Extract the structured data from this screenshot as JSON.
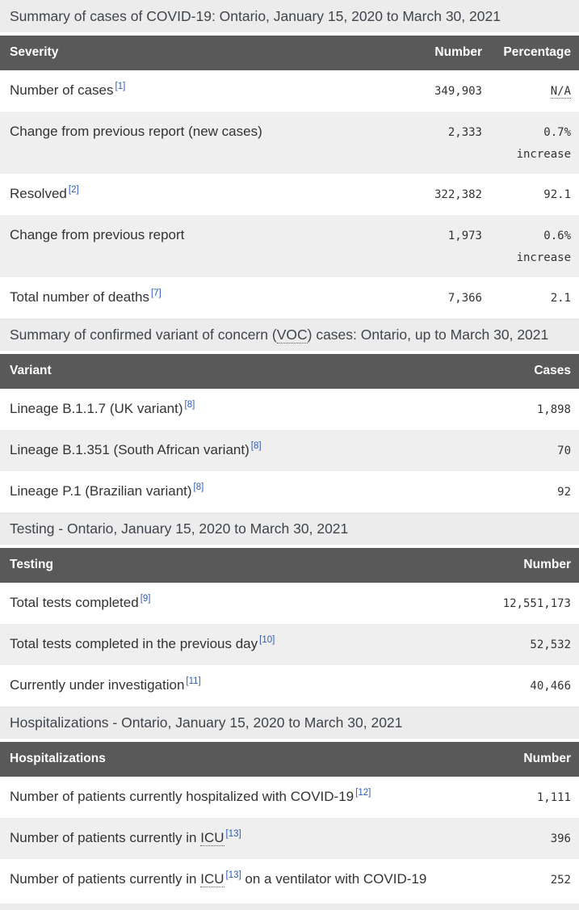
{
  "colors": {
    "header_bar_bg": "#595959",
    "header_bar_text": "#ffffff",
    "caption_bg": "#ececec",
    "row_alt_bg": "#efefef",
    "body_text": "#333333",
    "footnote_link_blue": "#2d5abe"
  },
  "cases_table": {
    "caption": "Summary of cases of COVID-19: Ontario, January 15, 2020 to March 30, 2021",
    "columns": {
      "label": "Severity",
      "number": "Number",
      "percentage": "Percentage"
    },
    "rows": [
      {
        "label": "Number of cases",
        "footnote": "[1]",
        "number": "349,903",
        "pct": "N/A"
      },
      {
        "label": "Change from previous report (new cases)",
        "number": "2,333",
        "pct": "0.7%",
        "pct2": "increase"
      },
      {
        "label": "Resolved",
        "footnote": "[2]",
        "number": "322,382",
        "pct": "92.1"
      },
      {
        "label": "Change from previous report",
        "number": "1,973",
        "pct": "0.6%",
        "pct2": "increase"
      },
      {
        "label": "Total number of deaths",
        "footnote": "[7]",
        "number": "7,366",
        "pct": "2.1"
      }
    ]
  },
  "voc_table": {
    "caption_before": "Summary of confirmed variant of concern (",
    "caption_abbr": "VOC",
    "caption_after": ") cases: Ontario, up to March 30, 2021",
    "columns": {
      "label": "Variant",
      "number": "Cases"
    },
    "rows": [
      {
        "label": "Lineage B.1.1.7 (UK variant)",
        "footnote": "[8]",
        "number": "1,898"
      },
      {
        "label": "Lineage B.1.351 (South African variant)",
        "footnote": "[8]",
        "number": "70"
      },
      {
        "label": "Lineage P.1 (Brazilian variant)",
        "footnote": "[8]",
        "number": "92"
      }
    ]
  },
  "testing_table": {
    "caption": "Testing - Ontario, January 15, 2020 to March 30, 2021",
    "columns": {
      "label": "Testing",
      "number": "Number"
    },
    "rows": [
      {
        "label": "Total tests completed",
        "footnote": "[9]",
        "number": "12,551,173"
      },
      {
        "label": "Total tests completed in the previous day",
        "footnote": "[10]",
        "number": "52,532"
      },
      {
        "label": "Currently under investigation",
        "footnote": "[11]",
        "number": "40,466"
      }
    ]
  },
  "hospitalizations_table": {
    "caption": "Hospitalizations - Ontario, January 15, 2020 to March 30, 2021",
    "columns": {
      "label": "Hospitalizations",
      "number": "Number"
    },
    "rows": [
      {
        "label": "Number of patients currently hospitalized with COVID-19",
        "footnote": "[12]",
        "number": "1,111"
      },
      {
        "label_before": "Number of patients currently in ",
        "abbr": "ICU",
        "footnote": "[13]",
        "number": "396"
      },
      {
        "label_before": "Number of patients currently in ",
        "abbr": "ICU",
        "footnote": "[13]",
        "label_after": " on a ventilator with COVID-19",
        "number": "252"
      }
    ]
  }
}
